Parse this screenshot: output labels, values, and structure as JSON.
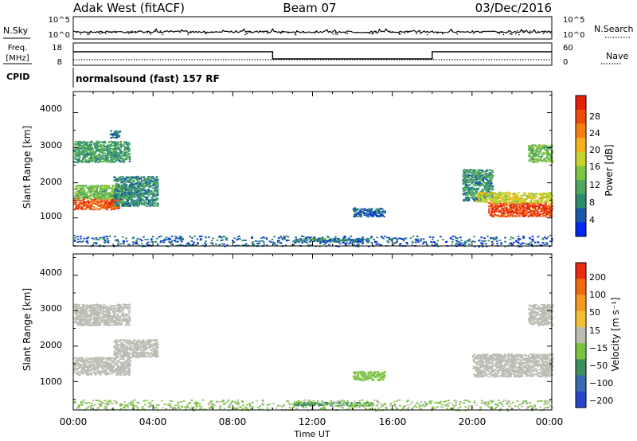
{
  "header": {
    "station": "Adak West (fitACF)",
    "beam": "Beam 07",
    "date": "03/Dec/2016"
  },
  "noise_panel": {
    "left_label": "N.Sky",
    "right_label": "N.Search",
    "tick_top": "10^5",
    "tick_bottom": "10^0"
  },
  "freq_panel": {
    "left_label_1": "Freq.",
    "left_label_2": "[MHz]",
    "left_tick_top": "18",
    "left_tick_bottom": "8",
    "right_label": "Nave",
    "right_tick_top": "60",
    "right_tick_bottom": "0"
  },
  "cpid": {
    "label": "CPID",
    "value": "normalsound (fast) 157 RF"
  },
  "axes": {
    "ylabel": "Slant Range [km]",
    "yticks": [
      "4000",
      "3000",
      "2000",
      "1000"
    ],
    "xticks": [
      "00:00",
      "04:00",
      "08:00",
      "12:00",
      "16:00",
      "20:00",
      "00:00"
    ],
    "xlabel": "Time UT"
  },
  "power_colorbar": {
    "label": "Power [dB]",
    "ticks": [
      "28",
      "24",
      "20",
      "16",
      "12",
      "8",
      "4"
    ],
    "colors": [
      "#0026f5",
      "#1a58a8",
      "#2f8c6e",
      "#4fa860",
      "#7bc643",
      "#c8d42e",
      "#f5b21c",
      "#f57f10",
      "#ef4b0b",
      "#e61e0c"
    ]
  },
  "velocity_colorbar": {
    "label": "Velocity [m s⁻¹]",
    "ticks": [
      "200",
      "100",
      "50",
      "15",
      "−15",
      "−50",
      "−100",
      "−200"
    ],
    "colors": [
      "#2a46c8",
      "#3a6ab0",
      "#3f8e60",
      "#7cc440",
      "#bcbcb4",
      "#f5c030",
      "#f59a20",
      "#f06a10",
      "#ec2a10"
    ]
  },
  "chart_data": [
    {
      "type": "heatmap",
      "title": "",
      "quantity": "Power",
      "xlabel": "Time UT",
      "ylabel": "Slant Range [km]",
      "xlim": [
        0,
        24
      ],
      "ylim": [
        200,
        4600
      ],
      "color_range": [
        0,
        32
      ],
      "regions": [
        {
          "t_start": 0.0,
          "t_end": 2.3,
          "r_start": 1250,
          "r_end": 1600,
          "power": 27
        },
        {
          "t_start": 0.0,
          "t_end": 2.8,
          "r_start": 1550,
          "r_end": 1950,
          "power": 13
        },
        {
          "t_start": 2.0,
          "t_end": 4.2,
          "r_start": 1350,
          "r_end": 2200,
          "power": 8
        },
        {
          "t_start": 0.0,
          "t_end": 2.8,
          "r_start": 2600,
          "r_end": 3200,
          "power": 10
        },
        {
          "t_start": 1.8,
          "t_end": 2.3,
          "r_start": 3300,
          "r_end": 3500,
          "power": 6
        },
        {
          "t_start": 11.0,
          "t_end": 14.8,
          "r_start": 330,
          "r_end": 430,
          "power": 7
        },
        {
          "t_start": 11.8,
          "t_end": 12.6,
          "r_start": 360,
          "r_end": 440,
          "power": 13
        },
        {
          "t_start": 14.0,
          "t_end": 15.6,
          "r_start": 1050,
          "r_end": 1300,
          "power": 6
        },
        {
          "t_start": 0.0,
          "t_end": 24.0,
          "r_start": 200,
          "r_end": 500,
          "power": 5
        },
        {
          "t_start": 19.5,
          "t_end": 21.0,
          "r_start": 1500,
          "r_end": 2400,
          "power": 9
        },
        {
          "t_start": 20.8,
          "t_end": 24.0,
          "r_start": 1050,
          "r_end": 1450,
          "power": 28
        },
        {
          "t_start": 20.2,
          "t_end": 24.0,
          "r_start": 1450,
          "r_end": 1750,
          "power": 18
        },
        {
          "t_start": 22.8,
          "t_end": 24.0,
          "r_start": 2600,
          "r_end": 3100,
          "power": 13
        }
      ]
    },
    {
      "type": "heatmap",
      "title": "",
      "quantity": "Velocity",
      "xlabel": "Time UT",
      "ylabel": "Slant Range [km]",
      "xlim": [
        0,
        24
      ],
      "ylim": [
        200,
        4600
      ],
      "color_range": [
        -200,
        200
      ],
      "regions": [
        {
          "t_start": 0.0,
          "t_end": 2.8,
          "r_start": 1200,
          "r_end": 1700,
          "velocity": 0
        },
        {
          "t_start": 2.0,
          "t_end": 4.2,
          "r_start": 1700,
          "r_end": 2200,
          "velocity": 0
        },
        {
          "t_start": 0.0,
          "t_end": 2.8,
          "r_start": 2600,
          "r_end": 3200,
          "velocity": 0
        },
        {
          "t_start": 20.0,
          "t_end": 24.0,
          "r_start": 1150,
          "r_end": 1800,
          "velocity": 0
        },
        {
          "t_start": 22.8,
          "t_end": 24.0,
          "r_start": 2600,
          "r_end": 3200,
          "velocity": 0
        },
        {
          "t_start": 11.0,
          "t_end": 13.5,
          "r_start": 330,
          "r_end": 430,
          "velocity": -90
        },
        {
          "t_start": 13.5,
          "t_end": 15.0,
          "r_start": 330,
          "r_end": 430,
          "velocity": -70
        },
        {
          "t_start": 0.0,
          "t_end": 24.0,
          "r_start": 200,
          "r_end": 500,
          "velocity": -30
        },
        {
          "t_start": 14.0,
          "t_end": 15.6,
          "r_start": 1050,
          "r_end": 1300,
          "velocity": -40
        }
      ]
    }
  ]
}
